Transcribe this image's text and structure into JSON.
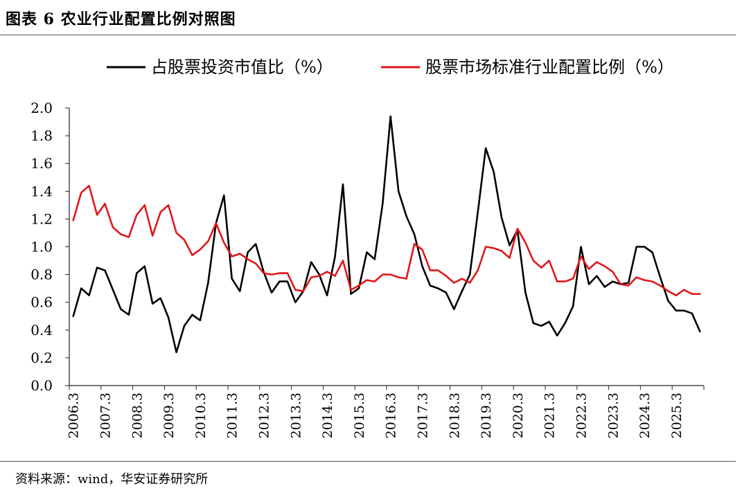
{
  "header": {
    "title": "图表 6 农业行业配置比例对照图"
  },
  "footer": {
    "source": "资料来源：wind，华安证券研究所"
  },
  "colors": {
    "series1": "#000000",
    "series2": "#e0161c",
    "axis": "#222222"
  },
  "chart_data": {
    "type": "line",
    "title": "农业行业配置比例对照图",
    "xlabel": "",
    "ylabel": "",
    "ylim": [
      0,
      2.0
    ],
    "yticks": [
      "0.0",
      "0.2",
      "0.4",
      "0.6",
      "0.8",
      "1.0",
      "1.2",
      "1.4",
      "1.6",
      "1.8",
      "2.0"
    ],
    "xtick_labels": [
      "2006.3",
      "2007.3",
      "2008.3",
      "2009.3",
      "2010.3",
      "2011.3",
      "2012.3",
      "2013.3",
      "2014.3",
      "2015.3",
      "2016.3",
      "2017.3",
      "2018.3",
      "2019.3",
      "2020.3",
      "2021.3",
      "2022.3",
      "2023.3",
      "2024.3",
      "2025.3"
    ],
    "x_start": "2006.3",
    "x_step": "quarter",
    "grid": false,
    "legend_position": "top",
    "series": [
      {
        "name": "占股票投资市值比（%）",
        "color": "#000000",
        "values": [
          0.5,
          0.7,
          0.65,
          0.85,
          0.83,
          0.69,
          0.55,
          0.51,
          0.81,
          0.86,
          0.59,
          0.63,
          0.49,
          0.24,
          0.43,
          0.51,
          0.47,
          0.74,
          1.17,
          1.37,
          0.77,
          0.68,
          0.96,
          1.02,
          0.82,
          0.67,
          0.75,
          0.75,
          0.6,
          0.68,
          0.89,
          0.8,
          0.65,
          0.93,
          1.45,
          0.66,
          0.7,
          0.96,
          0.91,
          1.31,
          1.94,
          1.4,
          1.22,
          1.09,
          0.86,
          0.72,
          0.7,
          0.67,
          0.55,
          0.68,
          0.8,
          1.25,
          1.71,
          1.54,
          1.21,
          1.01,
          1.12,
          0.67,
          0.45,
          0.43,
          0.46,
          0.36,
          0.45,
          0.57,
          1.0,
          0.73,
          0.79,
          0.71,
          0.75,
          0.73,
          0.74,
          1.0,
          1.0,
          0.96,
          0.78,
          0.61,
          0.54,
          0.54,
          0.52,
          0.39
        ]
      },
      {
        "name": "股票市场标准行业配置比例（%）",
        "color": "#e0161c",
        "values": [
          1.19,
          1.39,
          1.44,
          1.23,
          1.31,
          1.14,
          1.09,
          1.07,
          1.23,
          1.3,
          1.08,
          1.25,
          1.3,
          1.1,
          1.05,
          0.94,
          0.98,
          1.04,
          1.17,
          1.03,
          0.93,
          0.95,
          0.91,
          0.88,
          0.81,
          0.8,
          0.81,
          0.81,
          0.69,
          0.68,
          0.78,
          0.79,
          0.82,
          0.79,
          0.9,
          0.69,
          0.72,
          0.76,
          0.75,
          0.8,
          0.8,
          0.78,
          0.77,
          1.02,
          0.98,
          0.83,
          0.83,
          0.79,
          0.74,
          0.77,
          0.74,
          0.83,
          1.0,
          0.99,
          0.97,
          0.92,
          1.13,
          1.03,
          0.9,
          0.85,
          0.9,
          0.75,
          0.75,
          0.77,
          0.93,
          0.84,
          0.89,
          0.86,
          0.82,
          0.73,
          0.72,
          0.78,
          0.76,
          0.75,
          0.72,
          0.68,
          0.65,
          0.69,
          0.66,
          0.66
        ]
      }
    ]
  }
}
